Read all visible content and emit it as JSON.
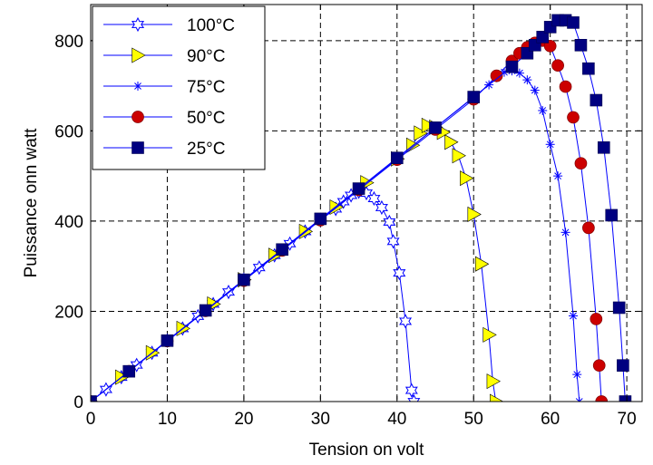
{
  "chart_data": {
    "type": "line",
    "title": "",
    "xlabel": "Tension on volt",
    "ylabel": "Puissance onn watt",
    "xlim": [
      0,
      72
    ],
    "ylim": [
      0,
      880
    ],
    "xticks": [
      0,
      10,
      20,
      30,
      40,
      50,
      60,
      70
    ],
    "yticks": [
      0,
      200,
      400,
      600,
      800
    ],
    "grid": true,
    "legend_position": "top-left",
    "series": [
      {
        "name": "100°C",
        "color": "#0000ff",
        "marker": "hexagram",
        "points": [
          [
            0,
            0
          ],
          [
            2,
            27
          ],
          [
            4,
            54
          ],
          [
            6,
            81
          ],
          [
            8,
            108
          ],
          [
            10,
            135
          ],
          [
            12,
            162
          ],
          [
            14,
            189
          ],
          [
            16,
            216
          ],
          [
            18,
            243
          ],
          [
            20,
            270
          ],
          [
            22,
            297
          ],
          [
            24,
            324
          ],
          [
            26,
            350
          ],
          [
            28,
            377
          ],
          [
            30,
            403
          ],
          [
            32,
            427
          ],
          [
            33,
            443
          ],
          [
            34,
            457
          ],
          [
            35,
            465
          ],
          [
            36,
            462
          ],
          [
            37,
            450
          ],
          [
            38,
            430
          ],
          [
            39,
            398
          ],
          [
            39.5,
            355
          ],
          [
            40.3,
            285
          ],
          [
            41.1,
            178
          ],
          [
            41.9,
            25
          ],
          [
            42.2,
            0
          ]
        ]
      },
      {
        "name": "90°C",
        "color": "#0000ff",
        "marker": "triangle-right",
        "marker_fill": "#ffff00",
        "points": [
          [
            0,
            0
          ],
          [
            4,
            54
          ],
          [
            8,
            108
          ],
          [
            12,
            162
          ],
          [
            16,
            216
          ],
          [
            20,
            270
          ],
          [
            24,
            324
          ],
          [
            28,
            377
          ],
          [
            32,
            431
          ],
          [
            36,
            485
          ],
          [
            40,
            538
          ],
          [
            42,
            568
          ],
          [
            43,
            595
          ],
          [
            44,
            612
          ],
          [
            45,
            608
          ],
          [
            46,
            597
          ],
          [
            47,
            575
          ],
          [
            48,
            545
          ],
          [
            49,
            495
          ],
          [
            50,
            415
          ],
          [
            51,
            305
          ],
          [
            52,
            148
          ],
          [
            52.5,
            45
          ],
          [
            52.9,
            0
          ]
        ]
      },
      {
        "name": "75°C",
        "color": "#0000ff",
        "marker": "asterisk",
        "points": [
          [
            0,
            0
          ],
          [
            5,
            67
          ],
          [
            10,
            135
          ],
          [
            15,
            202
          ],
          [
            20,
            270
          ],
          [
            25,
            337
          ],
          [
            30,
            404
          ],
          [
            35,
            472
          ],
          [
            40,
            539
          ],
          [
            45,
            607
          ],
          [
            50,
            674
          ],
          [
            52,
            702
          ],
          [
            53,
            718
          ],
          [
            54,
            730
          ],
          [
            55,
            733
          ],
          [
            56,
            728
          ],
          [
            57,
            713
          ],
          [
            58,
            690
          ],
          [
            59,
            645
          ],
          [
            60,
            570
          ],
          [
            61,
            500
          ],
          [
            62,
            375
          ],
          [
            63,
            190
          ],
          [
            63.5,
            60
          ],
          [
            63.8,
            0
          ]
        ]
      },
      {
        "name": "50°C",
        "color": "#0000ff",
        "marker": "circle",
        "marker_fill": "#cc0000",
        "points": [
          [
            0,
            0
          ],
          [
            5,
            67
          ],
          [
            10,
            134
          ],
          [
            15,
            201
          ],
          [
            20,
            268
          ],
          [
            25,
            335
          ],
          [
            30,
            402
          ],
          [
            35,
            469
          ],
          [
            40,
            536
          ],
          [
            45,
            603
          ],
          [
            50,
            670
          ],
          [
            53,
            722
          ],
          [
            55,
            755
          ],
          [
            56,
            772
          ],
          [
            57,
            785
          ],
          [
            58,
            795
          ],
          [
            59,
            800
          ],
          [
            60,
            788
          ],
          [
            61,
            745
          ],
          [
            62,
            698
          ],
          [
            63,
            630
          ],
          [
            64,
            528
          ],
          [
            65,
            385
          ],
          [
            66,
            183
          ],
          [
            66.4,
            80
          ],
          [
            66.7,
            0
          ]
        ]
      },
      {
        "name": "25°C",
        "color": "#0000ff",
        "marker": "square",
        "marker_fill": "#000080",
        "points": [
          [
            0,
            0
          ],
          [
            5,
            67
          ],
          [
            10,
            135
          ],
          [
            15,
            202
          ],
          [
            20,
            270
          ],
          [
            25,
            337
          ],
          [
            30,
            405
          ],
          [
            35,
            472
          ],
          [
            40,
            540
          ],
          [
            45,
            607
          ],
          [
            50,
            675
          ],
          [
            55,
            742
          ],
          [
            57,
            772
          ],
          [
            58,
            790
          ],
          [
            59,
            808
          ],
          [
            60,
            830
          ],
          [
            61,
            845
          ],
          [
            62,
            845
          ],
          [
            63,
            840
          ],
          [
            64,
            790
          ],
          [
            65,
            738
          ],
          [
            66,
            668
          ],
          [
            67,
            563
          ],
          [
            68,
            413
          ],
          [
            69,
            208
          ],
          [
            69.5,
            80
          ],
          [
            69.8,
            0
          ]
        ]
      }
    ]
  }
}
